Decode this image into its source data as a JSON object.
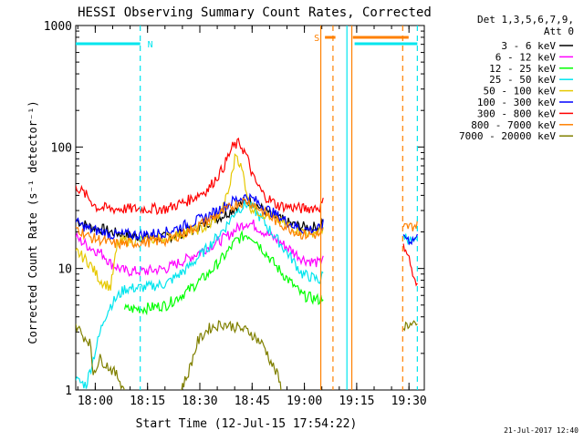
{
  "chart_data": {
    "type": "line",
    "title": "HESSI Observing Summary Count Rates, Corrected",
    "xlabel": "Start Time (12-Jul-15 17:54:22)",
    "ylabel": "Corrected Count Rate (s⁻¹ detector⁻¹)",
    "footer": "21-Jul-2017 12:40",
    "x_unit": "minutes after 17:54:22",
    "xlim": [
      0,
      100
    ],
    "ylim": [
      1,
      1000
    ],
    "yscale": "log",
    "x_ticks": [
      {
        "label": "18:00",
        "value": 5.6
      },
      {
        "label": "18:15",
        "value": 20.6
      },
      {
        "label": "18:30",
        "value": 35.6
      },
      {
        "label": "18:45",
        "value": 50.6
      },
      {
        "label": "19:00",
        "value": 65.6
      },
      {
        "label": "19:15",
        "value": 80.6
      },
      {
        "label": "19:30",
        "value": 95.6
      }
    ],
    "y_ticks": [
      {
        "label": "1",
        "value": 1
      },
      {
        "label": "10",
        "value": 10
      },
      {
        "label": "100",
        "value": 100
      },
      {
        "label": "1000",
        "value": 1000
      }
    ],
    "legend": {
      "header": [
        "Det 1,3,5,6,7,9,",
        "Att 0"
      ],
      "placement": "right"
    },
    "flags": [
      {
        "label": "N",
        "color": "#00e5ee",
        "segments": [
          [
            0,
            18.5
          ]
        ]
      },
      {
        "label": "S",
        "color": "#ff8000",
        "segments": [
          [
            71.5,
            74.5
          ],
          [
            79.5,
            95.5
          ]
        ]
      },
      {
        "label": "",
        "color": "#00e5ee",
        "segments": [
          [
            80,
            98
          ]
        ]
      }
    ],
    "vlines": [
      {
        "x": 18.5,
        "color": "#00e5ee",
        "style": "dashed"
      },
      {
        "x": 70.3,
        "color": "#ff8000",
        "style": "solid"
      },
      {
        "x": 73.8,
        "color": "#ff8000",
        "style": "dashed"
      },
      {
        "x": 77.8,
        "color": "#00e5ee",
        "style": "solid"
      },
      {
        "x": 79.2,
        "color": "#ff8000",
        "style": "solid"
      },
      {
        "x": 93.8,
        "color": "#ff8000",
        "style": "dashed"
      },
      {
        "x": 98.0,
        "color": "#00e5ee",
        "style": "dashed"
      }
    ],
    "series": [
      {
        "name": "3 - 6 keV",
        "color": "#000000",
        "points": [
          [
            0,
            25
          ],
          [
            4,
            22
          ],
          [
            8,
            21
          ],
          [
            10,
            20
          ],
          [
            14,
            19
          ],
          [
            20,
            18
          ],
          [
            26,
            18
          ],
          [
            32,
            20
          ],
          [
            38,
            24
          ],
          [
            43,
            28
          ],
          [
            46,
            32
          ],
          [
            49,
            36
          ],
          [
            51,
            35
          ],
          [
            54,
            30
          ],
          [
            58,
            26
          ],
          [
            62,
            23
          ],
          [
            65,
            22
          ],
          [
            70,
            22
          ],
          [
            71,
            25
          ]
        ]
      },
      {
        "name": "6 - 12 keV",
        "color": "#ff00ff",
        "points": [
          [
            0,
            18
          ],
          [
            4,
            15
          ],
          [
            8,
            13
          ],
          [
            10,
            11
          ],
          [
            14,
            9.5
          ],
          [
            20,
            9.5
          ],
          [
            26,
            10
          ],
          [
            32,
            12
          ],
          [
            38,
            15
          ],
          [
            43,
            18
          ],
          [
            46,
            21
          ],
          [
            49,
            24
          ],
          [
            51,
            23
          ],
          [
            54,
            20
          ],
          [
            58,
            17
          ],
          [
            62,
            14
          ],
          [
            65,
            12
          ],
          [
            70,
            11
          ],
          [
            71,
            13
          ]
        ]
      },
      {
        "name": "12 - 25 keV",
        "color": "#00ff00",
        "points": [
          [
            14,
            4.6
          ],
          [
            20,
            4.7
          ],
          [
            26,
            5
          ],
          [
            32,
            6.5
          ],
          [
            38,
            9
          ],
          [
            43,
            13
          ],
          [
            46,
            17
          ],
          [
            49,
            19
          ],
          [
            51,
            18
          ],
          [
            54,
            14
          ],
          [
            58,
            10
          ],
          [
            62,
            7.5
          ],
          [
            65,
            6
          ],
          [
            70,
            5.5
          ],
          [
            71,
            6
          ]
        ]
      },
      {
        "name": "25 - 50 keV",
        "color": "#00e5ee",
        "points": [
          [
            0,
            1.2
          ],
          [
            3,
            1.1
          ],
          [
            8,
            3.8
          ],
          [
            10,
            5
          ],
          [
            14,
            6.8
          ],
          [
            20,
            7
          ],
          [
            26,
            7.5
          ],
          [
            32,
            10
          ],
          [
            38,
            15
          ],
          [
            43,
            22
          ],
          [
            46,
            30
          ],
          [
            49,
            34
          ],
          [
            51,
            31
          ],
          [
            54,
            24
          ],
          [
            58,
            17
          ],
          [
            62,
            12
          ],
          [
            65,
            9
          ],
          [
            70,
            8
          ],
          [
            71,
            9
          ],
          [
            94,
            19
          ],
          [
            95,
            18
          ],
          [
            96,
            17
          ],
          [
            98,
            16
          ]
        ]
      },
      {
        "name": "50 - 100 keV",
        "color": "#e6c800",
        "points": [
          [
            0,
            14
          ],
          [
            4,
            11
          ],
          [
            7,
            8
          ],
          [
            10,
            7
          ],
          [
            12,
            16
          ],
          [
            14,
            17
          ],
          [
            20,
            17
          ],
          [
            26,
            18
          ],
          [
            32,
            20
          ],
          [
            38,
            22
          ],
          [
            42,
            30
          ],
          [
            44,
            45
          ],
          [
            46,
            90
          ],
          [
            48,
            60
          ],
          [
            50,
            32
          ],
          [
            54,
            28
          ],
          [
            58,
            25
          ],
          [
            62,
            22
          ],
          [
            65,
            20
          ],
          [
            70,
            20
          ],
          [
            71,
            22
          ]
        ]
      },
      {
        "name": "100 - 300 keV",
        "color": "#0000ff",
        "points": [
          [
            0,
            24
          ],
          [
            4,
            21
          ],
          [
            8,
            20
          ],
          [
            10,
            19
          ],
          [
            14,
            19
          ],
          [
            20,
            19
          ],
          [
            26,
            20
          ],
          [
            32,
            23
          ],
          [
            38,
            27
          ],
          [
            43,
            33
          ],
          [
            46,
            37
          ],
          [
            49,
            39
          ],
          [
            51,
            37
          ],
          [
            54,
            32
          ],
          [
            58,
            27
          ],
          [
            62,
            23
          ],
          [
            65,
            21
          ],
          [
            70,
            21
          ],
          [
            71,
            23
          ],
          [
            94,
            19
          ],
          [
            95,
            18
          ],
          [
            96,
            17
          ],
          [
            98,
            18
          ]
        ]
      },
      {
        "name": "300 - 800 keV",
        "color": "#ff0000",
        "points": [
          [
            0,
            48
          ],
          [
            3,
            40
          ],
          [
            6,
            32
          ],
          [
            10,
            31
          ],
          [
            14,
            31
          ],
          [
            20,
            31
          ],
          [
            26,
            31
          ],
          [
            32,
            36
          ],
          [
            38,
            45
          ],
          [
            42,
            65
          ],
          [
            45,
            100
          ],
          [
            47,
            108
          ],
          [
            49,
            85
          ],
          [
            51,
            55
          ],
          [
            54,
            40
          ],
          [
            58,
            33
          ],
          [
            62,
            32
          ],
          [
            65,
            31
          ],
          [
            70,
            32
          ],
          [
            71,
            35
          ],
          [
            94,
            16
          ],
          [
            95,
            14
          ],
          [
            96,
            11
          ],
          [
            97,
            8
          ],
          [
            98,
            7
          ]
        ]
      },
      {
        "name": "800 - 7000 keV",
        "color": "#ff8000",
        "points": [
          [
            0,
            22
          ],
          [
            4,
            18
          ],
          [
            8,
            17
          ],
          [
            10,
            16
          ],
          [
            14,
            16
          ],
          [
            20,
            16.5
          ],
          [
            26,
            17
          ],
          [
            32,
            20
          ],
          [
            38,
            25
          ],
          [
            43,
            30
          ],
          [
            46,
            34
          ],
          [
            49,
            36
          ],
          [
            51,
            34
          ],
          [
            54,
            29
          ],
          [
            58,
            24
          ],
          [
            62,
            21
          ],
          [
            65,
            19
          ],
          [
            70,
            19
          ],
          [
            71,
            20
          ],
          [
            94,
            22
          ],
          [
            95,
            22
          ],
          [
            96,
            22
          ],
          [
            98,
            23
          ]
        ]
      },
      {
        "name": "7000 - 20000 keV",
        "color": "#808000",
        "points": [
          [
            0,
            3.5
          ],
          [
            2,
            2.8
          ],
          [
            4,
            2.5
          ],
          [
            5,
            1.4
          ],
          [
            7,
            1.8
          ],
          [
            10,
            1.5
          ],
          [
            12,
            1.3
          ],
          [
            14,
            1
          ],
          [
            30,
            1
          ],
          [
            32,
            1.3
          ],
          [
            35,
            2.5
          ],
          [
            38,
            3.2
          ],
          [
            42,
            3.5
          ],
          [
            46,
            3.3
          ],
          [
            50,
            3
          ],
          [
            54,
            2.3
          ],
          [
            56,
            1.7
          ],
          [
            58,
            1.3
          ],
          [
            59,
            1
          ],
          [
            94,
            3.2
          ],
          [
            95,
            3.5
          ],
          [
            96,
            3.4
          ],
          [
            98,
            3.3
          ]
        ]
      }
    ]
  }
}
